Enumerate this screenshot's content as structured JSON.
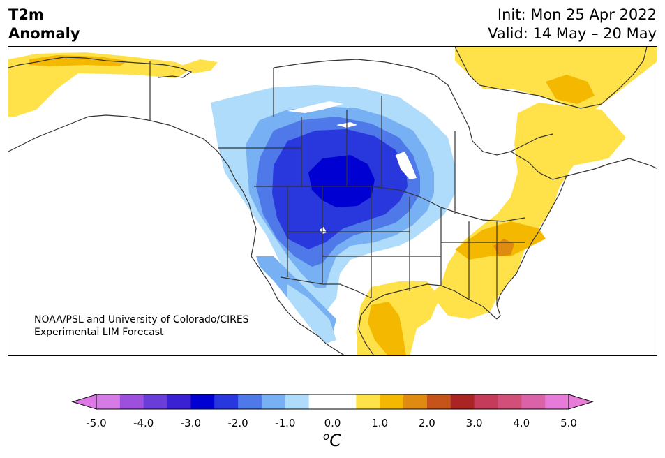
{
  "header": {
    "title_line1": "T2m",
    "title_line2": "Anomaly",
    "init_text": "Init: Mon 25 Apr 2022",
    "valid_text": "Valid: 14 May – 20 May"
  },
  "credit": {
    "line1": "NOAA/PSL and University of Colorado/CIRES",
    "line2": "Experimental LIM Forecast"
  },
  "colorbar": {
    "unit_base": "C",
    "unit_super": "o",
    "tick_labels": [
      "-5.0",
      "-4.0",
      "-3.0",
      "-2.0",
      "-1.0",
      "0.0",
      "1.0",
      "2.0",
      "3.0",
      "4.0",
      "5.0"
    ],
    "under_color": "#dc78e6",
    "over_color": "#e77bd8",
    "colors": [
      "#d67ae6",
      "#9c50dc",
      "#6a3cd8",
      "#3a22d2",
      "#0000d2",
      "#2838dc",
      "#4f78e8",
      "#78b0f4",
      "#aedcfa",
      "#ffffff",
      "#ffffff",
      "#ffe24a",
      "#f4b800",
      "#df8a10",
      "#c4541a",
      "#aa2424",
      "#c43c5a",
      "#d0507a",
      "#da62a8",
      "#e77bd8"
    ]
  },
  "map": {
    "ocean_color": "#ffffff",
    "coast_color": "#333333",
    "cold_colors": {
      "c05": "#aedcfa",
      "c10": "#78b0f4",
      "c15": "#4f78e8",
      "c20": "#2838dc",
      "c25": "#0000d2"
    },
    "warm_colors": {
      "w05": "#ffe24a",
      "w10": "#f4b800",
      "w15": "#df8a10"
    }
  }
}
